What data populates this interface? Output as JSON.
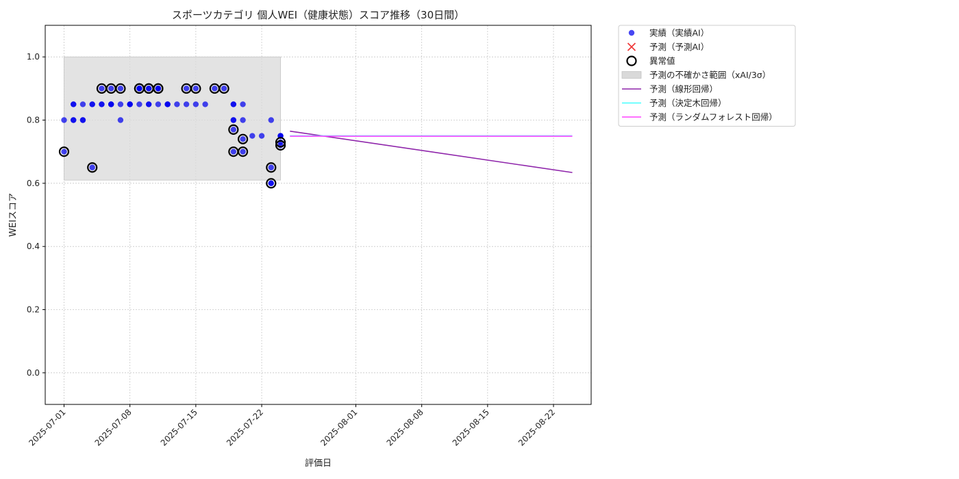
{
  "chart_data": {
    "type": "scatter",
    "title": "スポーツカテゴリ 個人WEI（健康状態）スコア推移（30日間）",
    "xlabel": "評価日",
    "ylabel": "WEIスコア",
    "xlim": [
      "2025-06-29",
      "2025-08-26"
    ],
    "ylim": [
      -0.1,
      1.1
    ],
    "x_ticks": [
      "2025-07-01",
      "2025-07-08",
      "2025-07-15",
      "2025-07-22",
      "2025-08-01",
      "2025-08-08",
      "2025-08-15",
      "2025-08-22"
    ],
    "y_ticks": [
      0.0,
      0.2,
      0.4,
      0.6,
      0.8,
      1.0
    ],
    "grid": true,
    "legend_position": "outside-top-right",
    "colors": {
      "actual": "#0000ee",
      "linear": "#8e24aa",
      "tree": "#40ffff",
      "forest": "#ff40ff",
      "band": "#d9d9d9",
      "anomaly_edge": "#000000"
    },
    "uncertainty_band": {
      "x_start": "2025-07-01",
      "x_end": "2025-07-24",
      "y_low": 0.61,
      "y_high": 1.0
    },
    "series": [
      {
        "name": "実績（実績AI）",
        "kind": "scatter",
        "points": [
          [
            "2025-07-01",
            0.8
          ],
          [
            "2025-07-01",
            0.7
          ],
          [
            "2025-07-02",
            0.85
          ],
          [
            "2025-07-02",
            0.8
          ],
          [
            "2025-07-02",
            0.8
          ],
          [
            "2025-07-02",
            0.85
          ],
          [
            "2025-07-03",
            0.8
          ],
          [
            "2025-07-03",
            0.8
          ],
          [
            "2025-07-03",
            0.85
          ],
          [
            "2025-07-04",
            0.65
          ],
          [
            "2025-07-04",
            0.85
          ],
          [
            "2025-07-04",
            0.85
          ],
          [
            "2025-07-05",
            0.85
          ],
          [
            "2025-07-05",
            0.9
          ],
          [
            "2025-07-05",
            0.85
          ],
          [
            "2025-07-06",
            0.9
          ],
          [
            "2025-07-06",
            0.85
          ],
          [
            "2025-07-06",
            0.85
          ],
          [
            "2025-07-06",
            0.85
          ],
          [
            "2025-07-07",
            0.85
          ],
          [
            "2025-07-07",
            0.8
          ],
          [
            "2025-07-07",
            0.9
          ],
          [
            "2025-07-08",
            0.85
          ],
          [
            "2025-07-08",
            0.85
          ],
          [
            "2025-07-08",
            0.85
          ],
          [
            "2025-07-09",
            0.9
          ],
          [
            "2025-07-09",
            0.9
          ],
          [
            "2025-07-09",
            0.85
          ],
          [
            "2025-07-09",
            0.9
          ],
          [
            "2025-07-10",
            0.9
          ],
          [
            "2025-07-10",
            0.85
          ],
          [
            "2025-07-10",
            0.85
          ],
          [
            "2025-07-10",
            0.9
          ],
          [
            "2025-07-11",
            0.9
          ],
          [
            "2025-07-11",
            0.85
          ],
          [
            "2025-07-11",
            0.9
          ],
          [
            "2025-07-11",
            0.9
          ],
          [
            "2025-07-12",
            0.85
          ],
          [
            "2025-07-12",
            0.85
          ],
          [
            "2025-07-12",
            0.85
          ],
          [
            "2025-07-13",
            0.85
          ],
          [
            "2025-07-14",
            0.9
          ],
          [
            "2025-07-14",
            0.85
          ],
          [
            "2025-07-15",
            0.9
          ],
          [
            "2025-07-15",
            0.85
          ],
          [
            "2025-07-16",
            0.85
          ],
          [
            "2025-07-17",
            0.9
          ],
          [
            "2025-07-18",
            0.9
          ],
          [
            "2025-07-19",
            0.85
          ],
          [
            "2025-07-19",
            0.8
          ],
          [
            "2025-07-19",
            0.77
          ],
          [
            "2025-07-19",
            0.7
          ],
          [
            "2025-07-19",
            0.85
          ],
          [
            "2025-07-19",
            0.8
          ],
          [
            "2025-07-20",
            0.85
          ],
          [
            "2025-07-20",
            0.74
          ],
          [
            "2025-07-20",
            0.7
          ],
          [
            "2025-07-20",
            0.8
          ],
          [
            "2025-07-21",
            0.75
          ],
          [
            "2025-07-22",
            0.75
          ],
          [
            "2025-07-23",
            0.65
          ],
          [
            "2025-07-23",
            0.6
          ],
          [
            "2025-07-23",
            0.8
          ],
          [
            "2025-07-23",
            0.6
          ],
          [
            "2025-07-24",
            0.75
          ],
          [
            "2025-07-24",
            0.73
          ],
          [
            "2025-07-24",
            0.72
          ],
          [
            "2025-07-24",
            0.75
          ],
          [
            "2025-07-24",
            0.75
          ]
        ]
      },
      {
        "name": "予測（予測AI）",
        "kind": "scatter",
        "points": []
      },
      {
        "name": "異常値",
        "kind": "anomaly",
        "points": [
          [
            "2025-07-01",
            0.7
          ],
          [
            "2025-07-04",
            0.65
          ],
          [
            "2025-07-05",
            0.9
          ],
          [
            "2025-07-06",
            0.9
          ],
          [
            "2025-07-07",
            0.9
          ],
          [
            "2025-07-09",
            0.9
          ],
          [
            "2025-07-09",
            0.9
          ],
          [
            "2025-07-10",
            0.9
          ],
          [
            "2025-07-10",
            0.9
          ],
          [
            "2025-07-11",
            0.9
          ],
          [
            "2025-07-11",
            0.9
          ],
          [
            "2025-07-14",
            0.9
          ],
          [
            "2025-07-15",
            0.9
          ],
          [
            "2025-07-17",
            0.9
          ],
          [
            "2025-07-18",
            0.9
          ],
          [
            "2025-07-19",
            0.77
          ],
          [
            "2025-07-19",
            0.7
          ],
          [
            "2025-07-20",
            0.74
          ],
          [
            "2025-07-20",
            0.7
          ],
          [
            "2025-07-23",
            0.65
          ],
          [
            "2025-07-23",
            0.6
          ],
          [
            "2025-07-24",
            0.73
          ],
          [
            "2025-07-24",
            0.72
          ]
        ]
      },
      {
        "name": "予測の不確かさ範囲（xAI/3σ）",
        "kind": "band"
      },
      {
        "name": "予測（線形回帰）",
        "kind": "line",
        "points": [
          [
            "2025-07-25",
            0.765
          ],
          [
            "2025-08-24",
            0.634
          ]
        ]
      },
      {
        "name": "予測（決定木回帰）",
        "kind": "line",
        "points": [
          [
            "2025-07-25",
            0.75
          ],
          [
            "2025-08-24",
            0.75
          ]
        ]
      },
      {
        "name": "予測（ランダムフォレスト回帰）",
        "kind": "line",
        "points": [
          [
            "2025-07-25",
            0.749
          ],
          [
            "2025-08-24",
            0.749
          ]
        ]
      }
    ]
  }
}
